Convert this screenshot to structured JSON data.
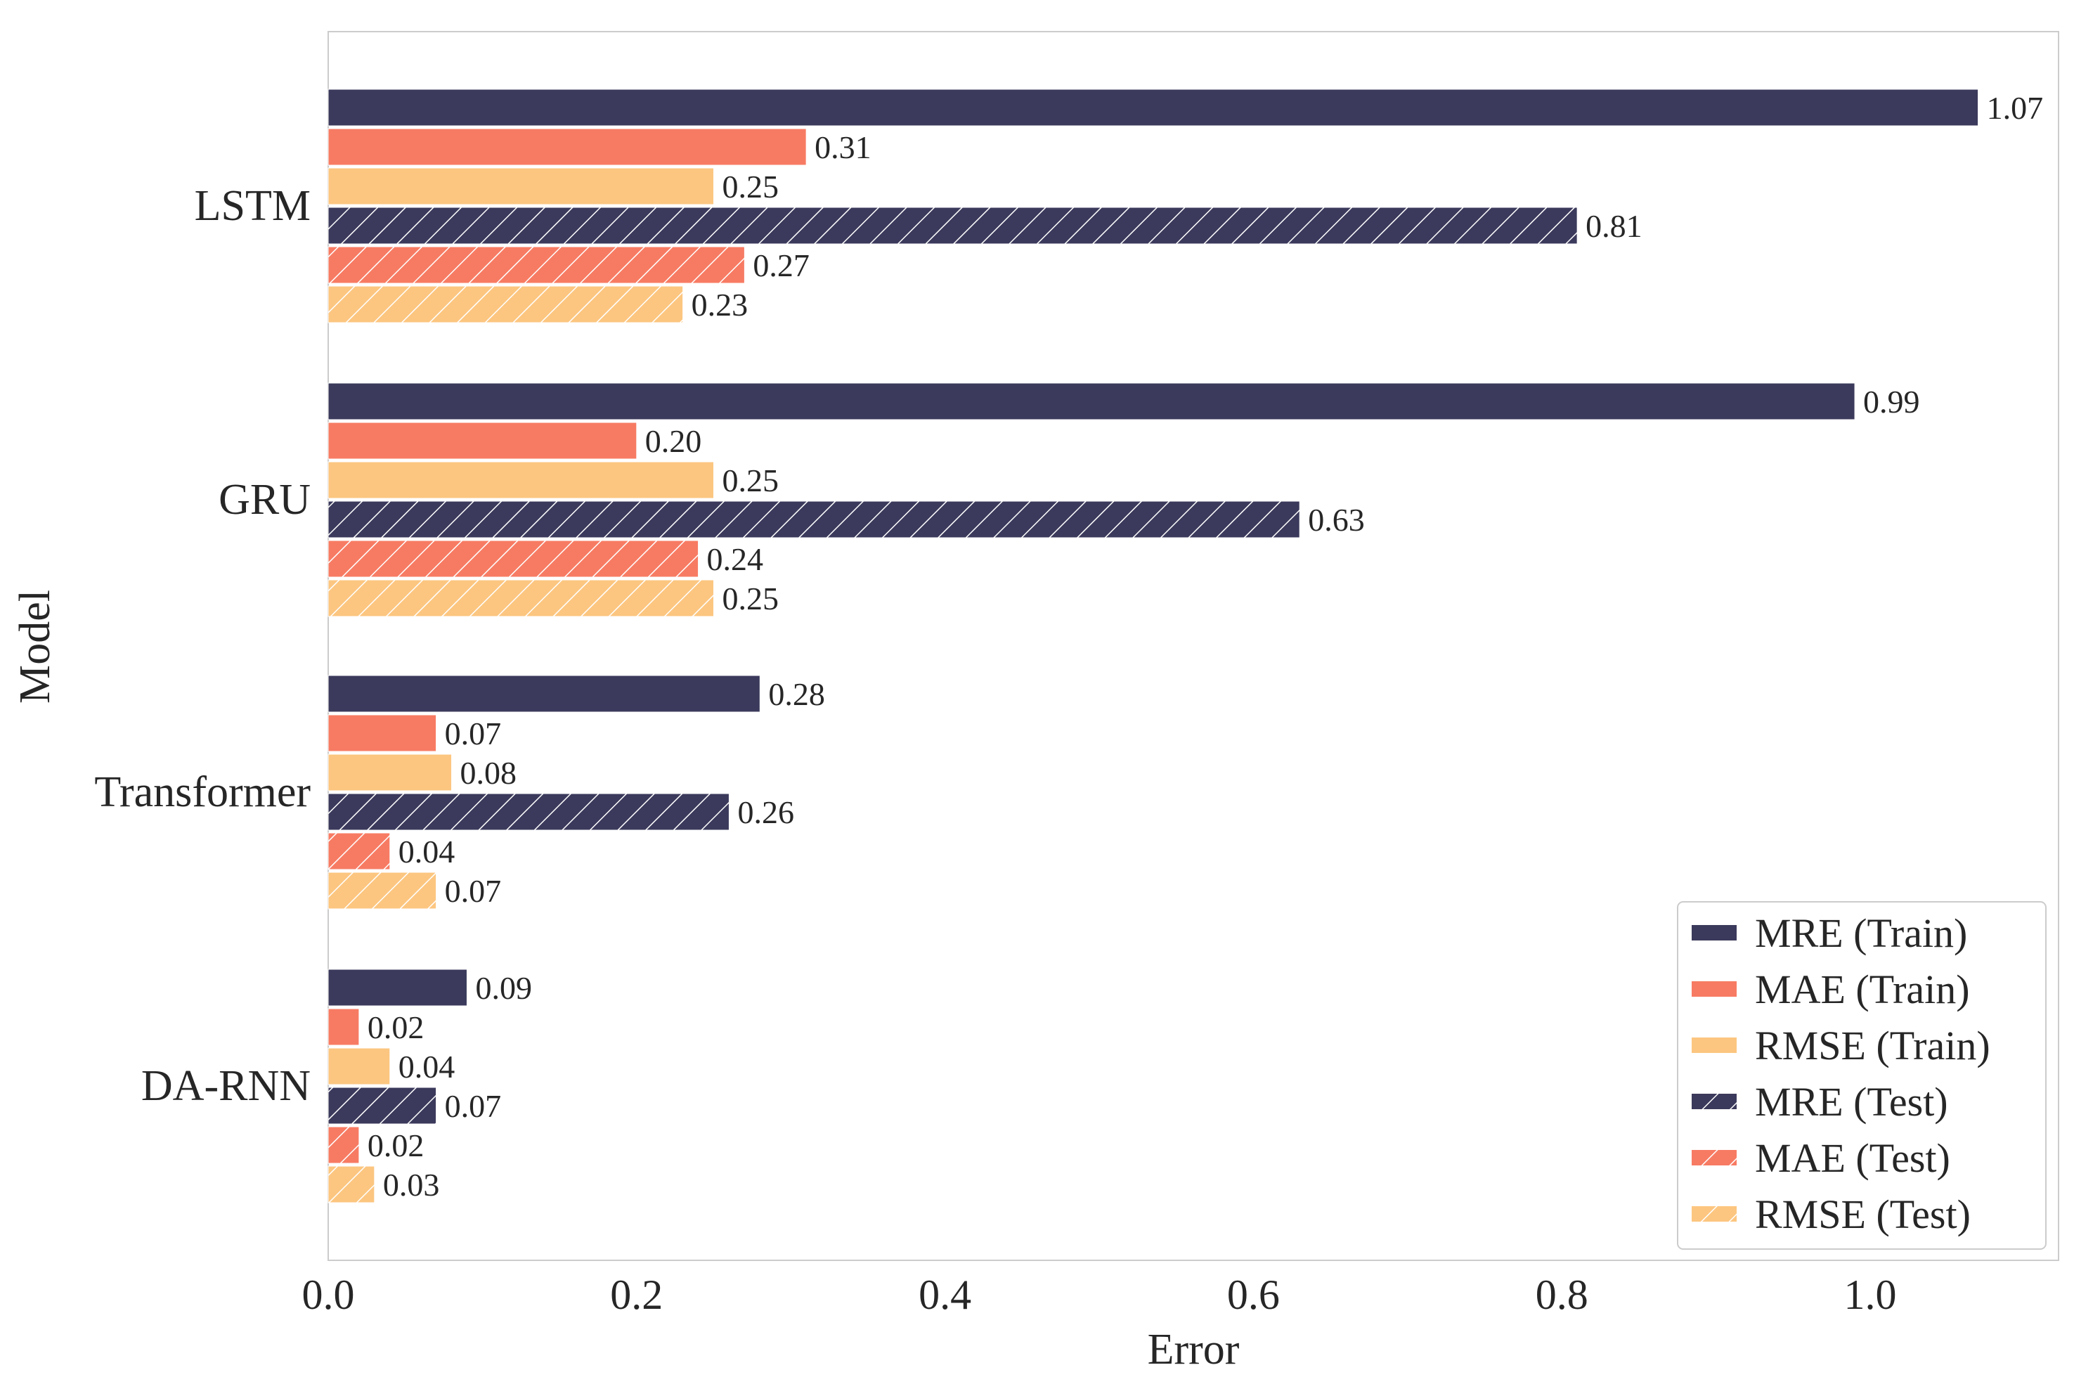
{
  "chart_data": {
    "type": "bar",
    "orientation": "horizontal",
    "categories": [
      "LSTM",
      "GRU",
      "Transformer",
      "DA-RNN"
    ],
    "series": [
      {
        "name": "MRE (Train)",
        "values": [
          1.07,
          0.99,
          0.28,
          0.09
        ],
        "color": "#3b3a5c",
        "hatched": false
      },
      {
        "name": "MAE (Train)",
        "values": [
          0.31,
          0.2,
          0.07,
          0.02
        ],
        "color": "#f77b63",
        "hatched": false
      },
      {
        "name": "RMSE (Train)",
        "values": [
          0.25,
          0.25,
          0.08,
          0.04
        ],
        "color": "#fcc680",
        "hatched": false
      },
      {
        "name": "MRE (Test)",
        "values": [
          0.81,
          0.63,
          0.26,
          0.07
        ],
        "color": "#3b3a5c",
        "hatched": true
      },
      {
        "name": "MAE (Test)",
        "values": [
          0.27,
          0.24,
          0.04,
          0.02
        ],
        "color": "#f77b63",
        "hatched": true
      },
      {
        "name": "RMSE (Test)",
        "values": [
          0.23,
          0.25,
          0.07,
          0.03
        ],
        "color": "#fcc680",
        "hatched": true
      }
    ],
    "value_labels": {
      "LSTM": [
        "1.07",
        "0.31",
        "0.25",
        "0.81",
        "0.27",
        "0.23"
      ],
      "GRU": [
        "0.99",
        "0.20",
        "0.25",
        "0.63",
        "0.24",
        "0.25"
      ],
      "Transformer": [
        "0.28",
        "0.07",
        "0.08",
        "0.26",
        "0.04",
        "0.07"
      ],
      "DA-RNN": [
        "0.09",
        "0.02",
        "0.04",
        "0.07",
        "0.02",
        "0.03"
      ]
    },
    "title": "",
    "xlabel": "Error",
    "ylabel": "Model",
    "xlim": [
      0,
      1.12
    ],
    "xticks": [
      "0.0",
      "0.2",
      "0.4",
      "0.6",
      "0.8",
      "1.0"
    ],
    "grid": false,
    "legend_position": "bottom-right"
  }
}
